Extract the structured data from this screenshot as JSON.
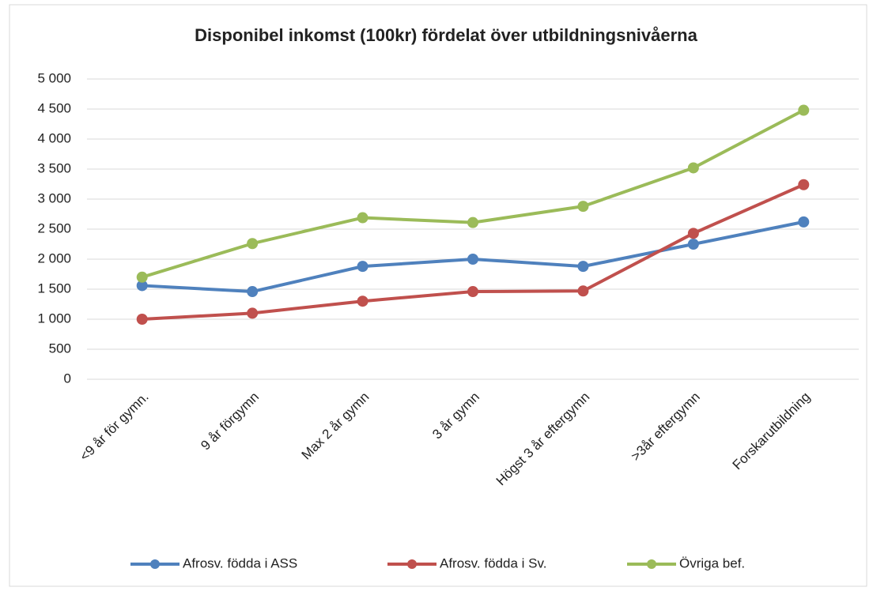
{
  "chart_data": {
    "type": "line",
    "title": "Disponibel inkomst (100kr) fördelat över utbildningsnivåerna",
    "categories": [
      "<9 år för gymn.",
      "9 år förgymn",
      "Max 2 år gymn",
      "3 år gymn",
      "Högst 3 år eftergymn",
      ">3år eftergymn",
      "Forskarutbildning"
    ],
    "series": [
      {
        "name": "Afrosv. födda i ASS",
        "color": "#4f81bd",
        "values": [
          1560,
          1460,
          1880,
          2000,
          1880,
          2250,
          2620
        ]
      },
      {
        "name": "Afrosv. födda i Sv.",
        "color": "#c0504d",
        "values": [
          1000,
          1100,
          1300,
          1460,
          1470,
          2430,
          3240
        ]
      },
      {
        "name": "Övriga bef.",
        "color": "#9bbb59",
        "values": [
          1700,
          2260,
          2690,
          2610,
          2880,
          3520,
          4480
        ]
      }
    ],
    "ylim": [
      0,
      5000
    ],
    "yticks": [
      0,
      500,
      {
        "value": 1000,
        "label": "1 000"
      },
      {
        "value": 1500,
        "label": "1 500"
      },
      {
        "value": 2000,
        "label": "2 000"
      },
      {
        "value": 2500,
        "label": "2 500"
      },
      {
        "value": 3000,
        "label": "3 000"
      },
      {
        "value": 3500,
        "label": "3 500"
      },
      {
        "value": 4000,
        "label": "4 000"
      },
      {
        "value": 4500,
        "label": "4 500"
      },
      {
        "value": 5000,
        "label": "5 000"
      }
    ],
    "grid": true,
    "legend": "bottom"
  }
}
